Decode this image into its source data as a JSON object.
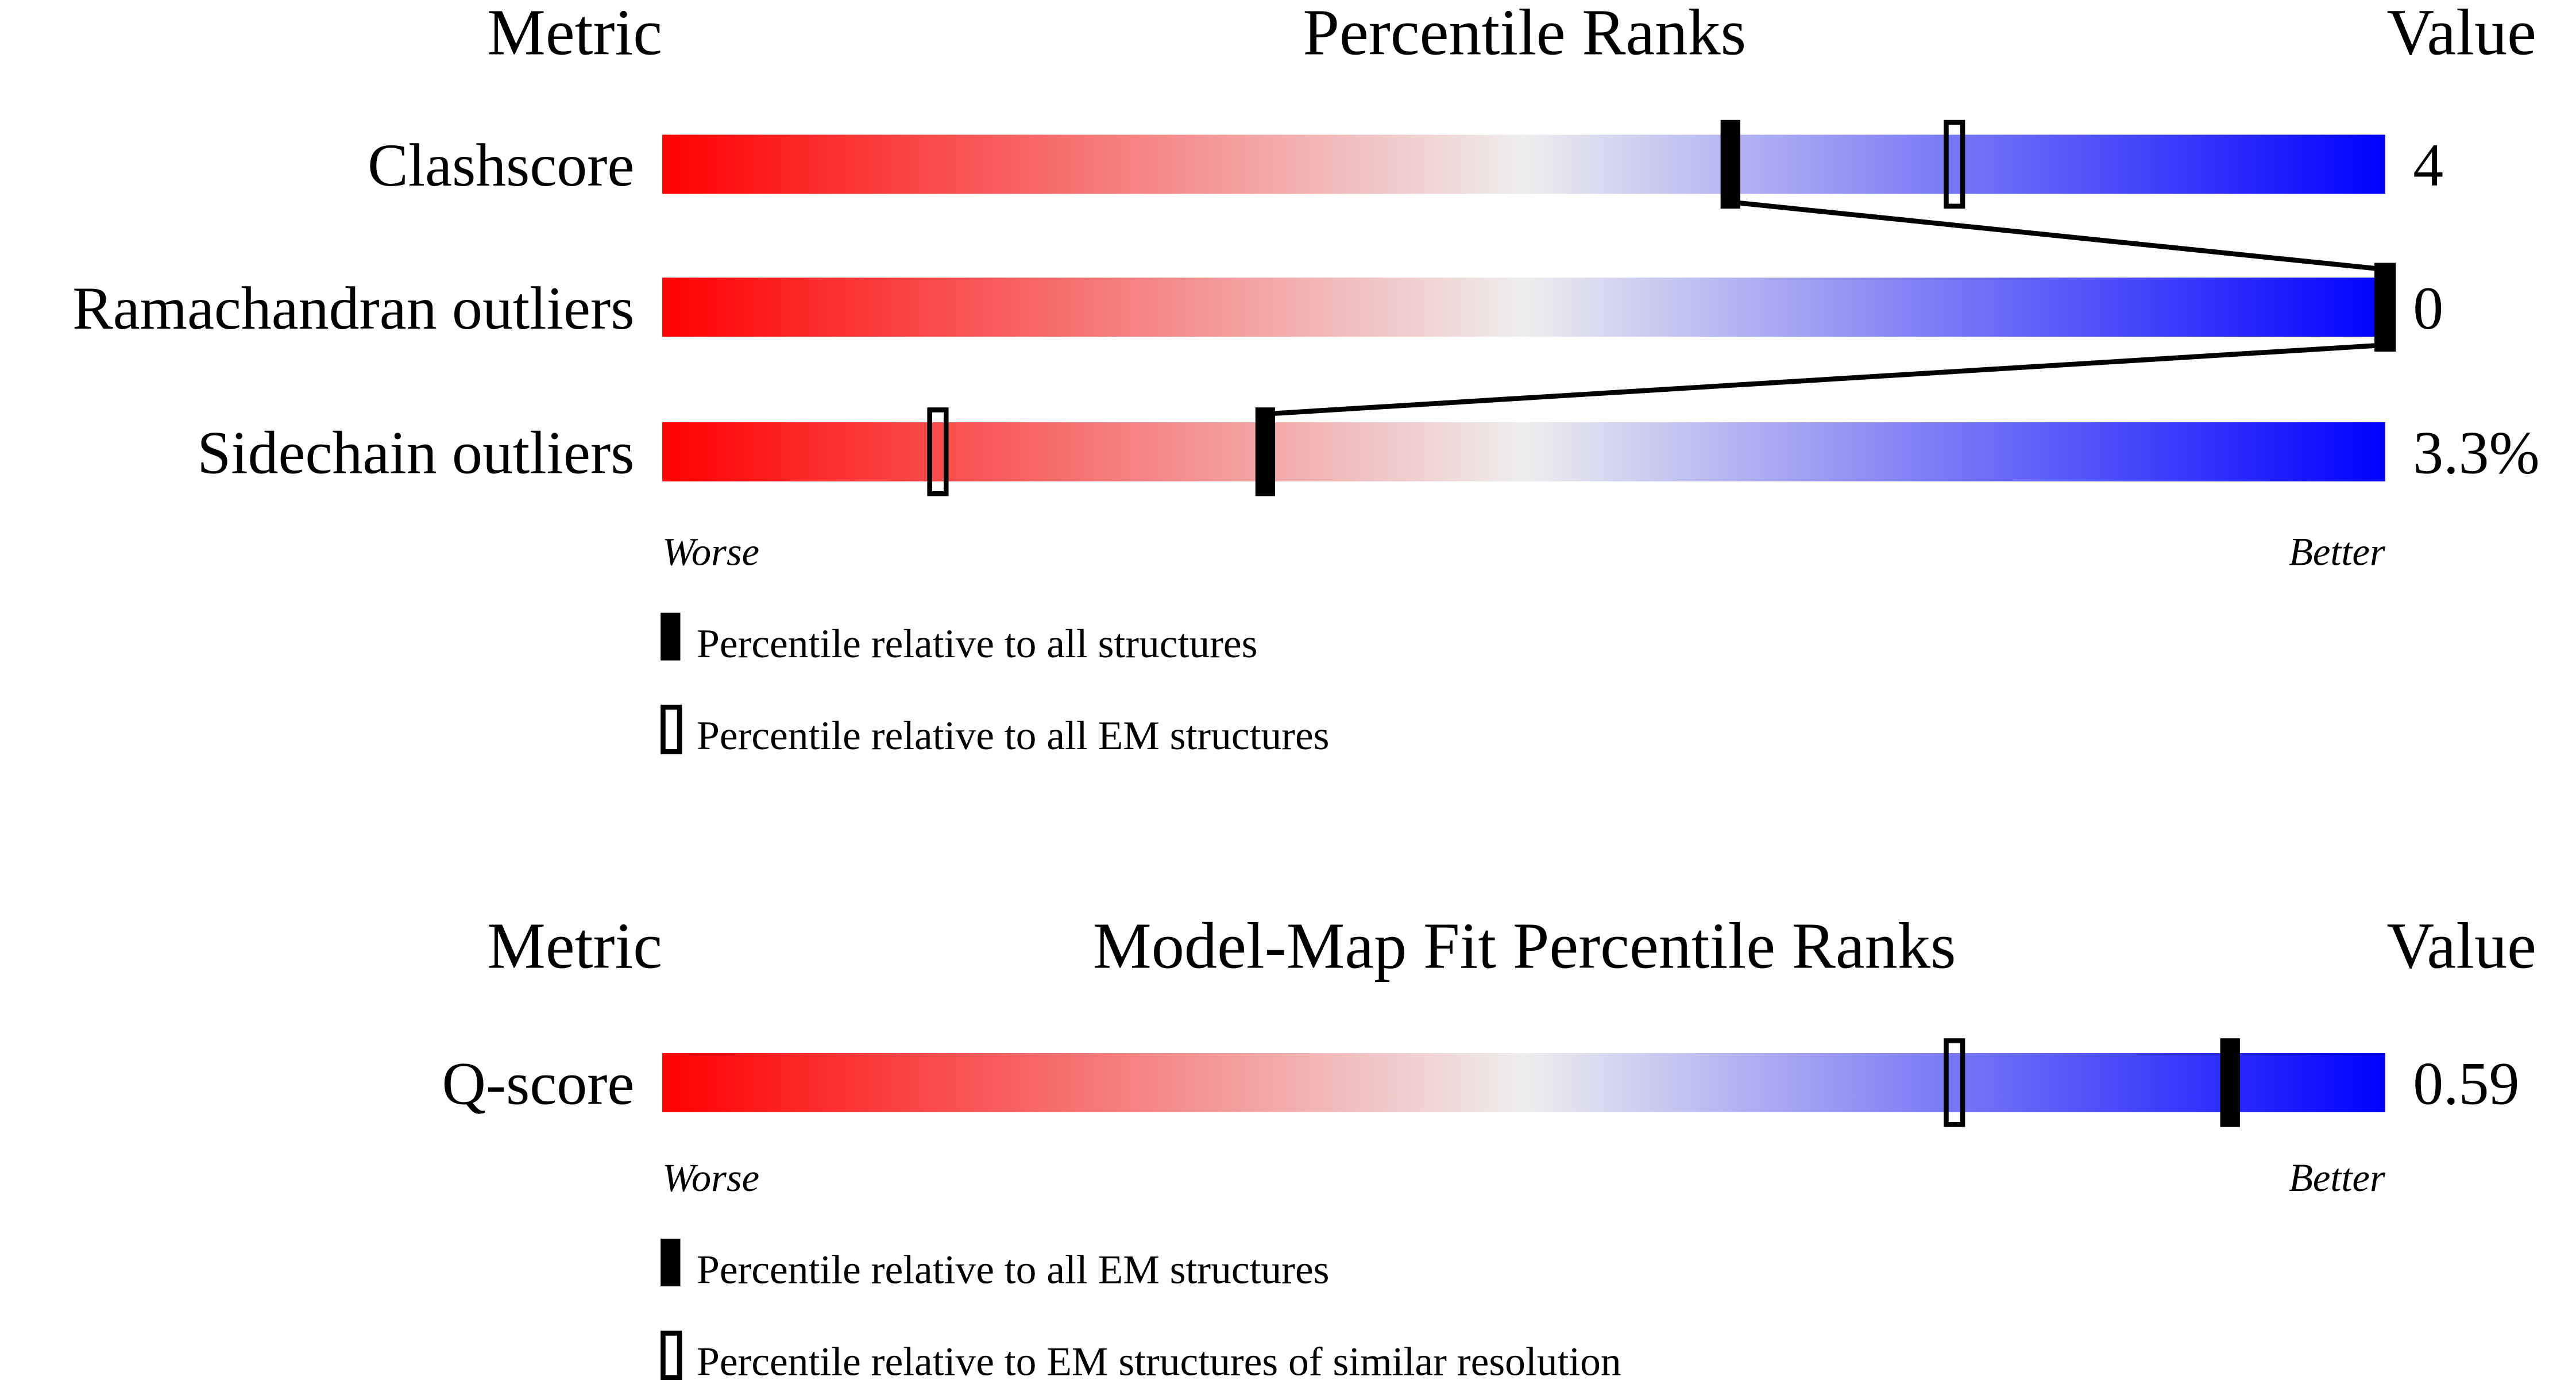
{
  "gradient_colors": {
    "worse": "#ff0000",
    "middle": "#eeeeee",
    "better": "#0000ff"
  },
  "chart_data": [
    {
      "type": "percentile-slider",
      "headers": {
        "metric": "Metric",
        "title": "Percentile Ranks",
        "value": "Value"
      },
      "axis_range": [
        0,
        100
      ],
      "ends": {
        "worse": "Worse",
        "better": "Better"
      },
      "rows": [
        {
          "metric": "Clashscore",
          "value": "4",
          "percentile_all": 62,
          "percentile_em": 75
        },
        {
          "metric": "Ramachandran outliers",
          "value": "0",
          "percentile_all": 100,
          "percentile_em": 100
        },
        {
          "metric": "Sidechain outliers",
          "value": "3.3%",
          "percentile_all": 35,
          "percentile_em": 16
        }
      ],
      "legend": {
        "filled": "Percentile relative to all structures",
        "hollow": "Percentile relative to all EM structures"
      }
    },
    {
      "type": "percentile-slider",
      "headers": {
        "metric": "Metric",
        "title": "Model-Map Fit Percentile Ranks",
        "value": "Value"
      },
      "axis_range": [
        0,
        100
      ],
      "ends": {
        "worse": "Worse",
        "better": "Better"
      },
      "rows": [
        {
          "metric": "Q-score",
          "value": "0.59",
          "percentile_all": 91,
          "percentile_em": 75
        }
      ],
      "legend": {
        "filled": "Percentile relative to all EM structures",
        "hollow": "Percentile relative to EM structures of similar resolution"
      }
    }
  ]
}
